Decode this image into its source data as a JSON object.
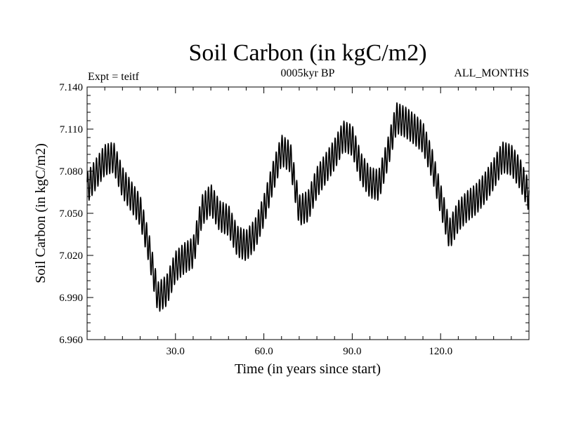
{
  "chart_data": {
    "type": "line",
    "title": "Soil Carbon (in kgC/m2)",
    "subtitle_left": "Expt = teitf",
    "subtitle_center": "0005kyr BP",
    "subtitle_right": "ALL_MONTHS",
    "xlabel": "Time (in years since start)",
    "ylabel": "Soil Carbon (in kgC/m2)",
    "xlim": [
      0,
      150
    ],
    "ylim": [
      6.96,
      7.14
    ],
    "x_ticks": [
      30,
      60,
      90,
      120
    ],
    "x_tick_labels": [
      "30.0",
      "60.0",
      "90.0",
      "120.0"
    ],
    "y_ticks": [
      6.96,
      6.99,
      7.02,
      7.05,
      7.08,
      7.11,
      7.14
    ],
    "y_tick_labels": [
      "6.960",
      "6.990",
      "7.020",
      "7.050",
      "7.080",
      "7.110",
      "7.140"
    ],
    "series": [
      {
        "name": "Soil Carbon",
        "seasonal_amplitude": 0.011,
        "annual_mean_anchors": {
          "year": [
            0,
            3,
            6,
            9,
            12,
            15,
            18,
            21,
            24,
            27,
            30,
            33,
            36,
            39,
            42,
            45,
            48,
            51,
            54,
            57,
            60,
            63,
            66,
            69,
            72,
            75,
            78,
            81,
            84,
            87,
            90,
            93,
            96,
            99,
            102,
            105,
            108,
            111,
            114,
            117,
            120,
            123,
            126,
            129,
            132,
            135,
            138,
            141,
            144,
            147,
            150
          ],
          "value": [
            7.068,
            7.078,
            7.088,
            7.09,
            7.072,
            7.062,
            7.052,
            7.025,
            6.99,
            6.995,
            7.012,
            7.018,
            7.022,
            7.052,
            7.06,
            7.048,
            7.045,
            7.03,
            7.027,
            7.035,
            7.052,
            7.075,
            7.095,
            7.09,
            7.052,
            7.055,
            7.072,
            7.082,
            7.092,
            7.105,
            7.102,
            7.082,
            7.072,
            7.07,
            7.092,
            7.118,
            7.115,
            7.11,
            7.104,
            7.086,
            7.06,
            7.035,
            7.048,
            7.055,
            7.06,
            7.068,
            7.078,
            7.09,
            7.088,
            7.078,
            7.062
          ]
        }
      }
    ]
  }
}
